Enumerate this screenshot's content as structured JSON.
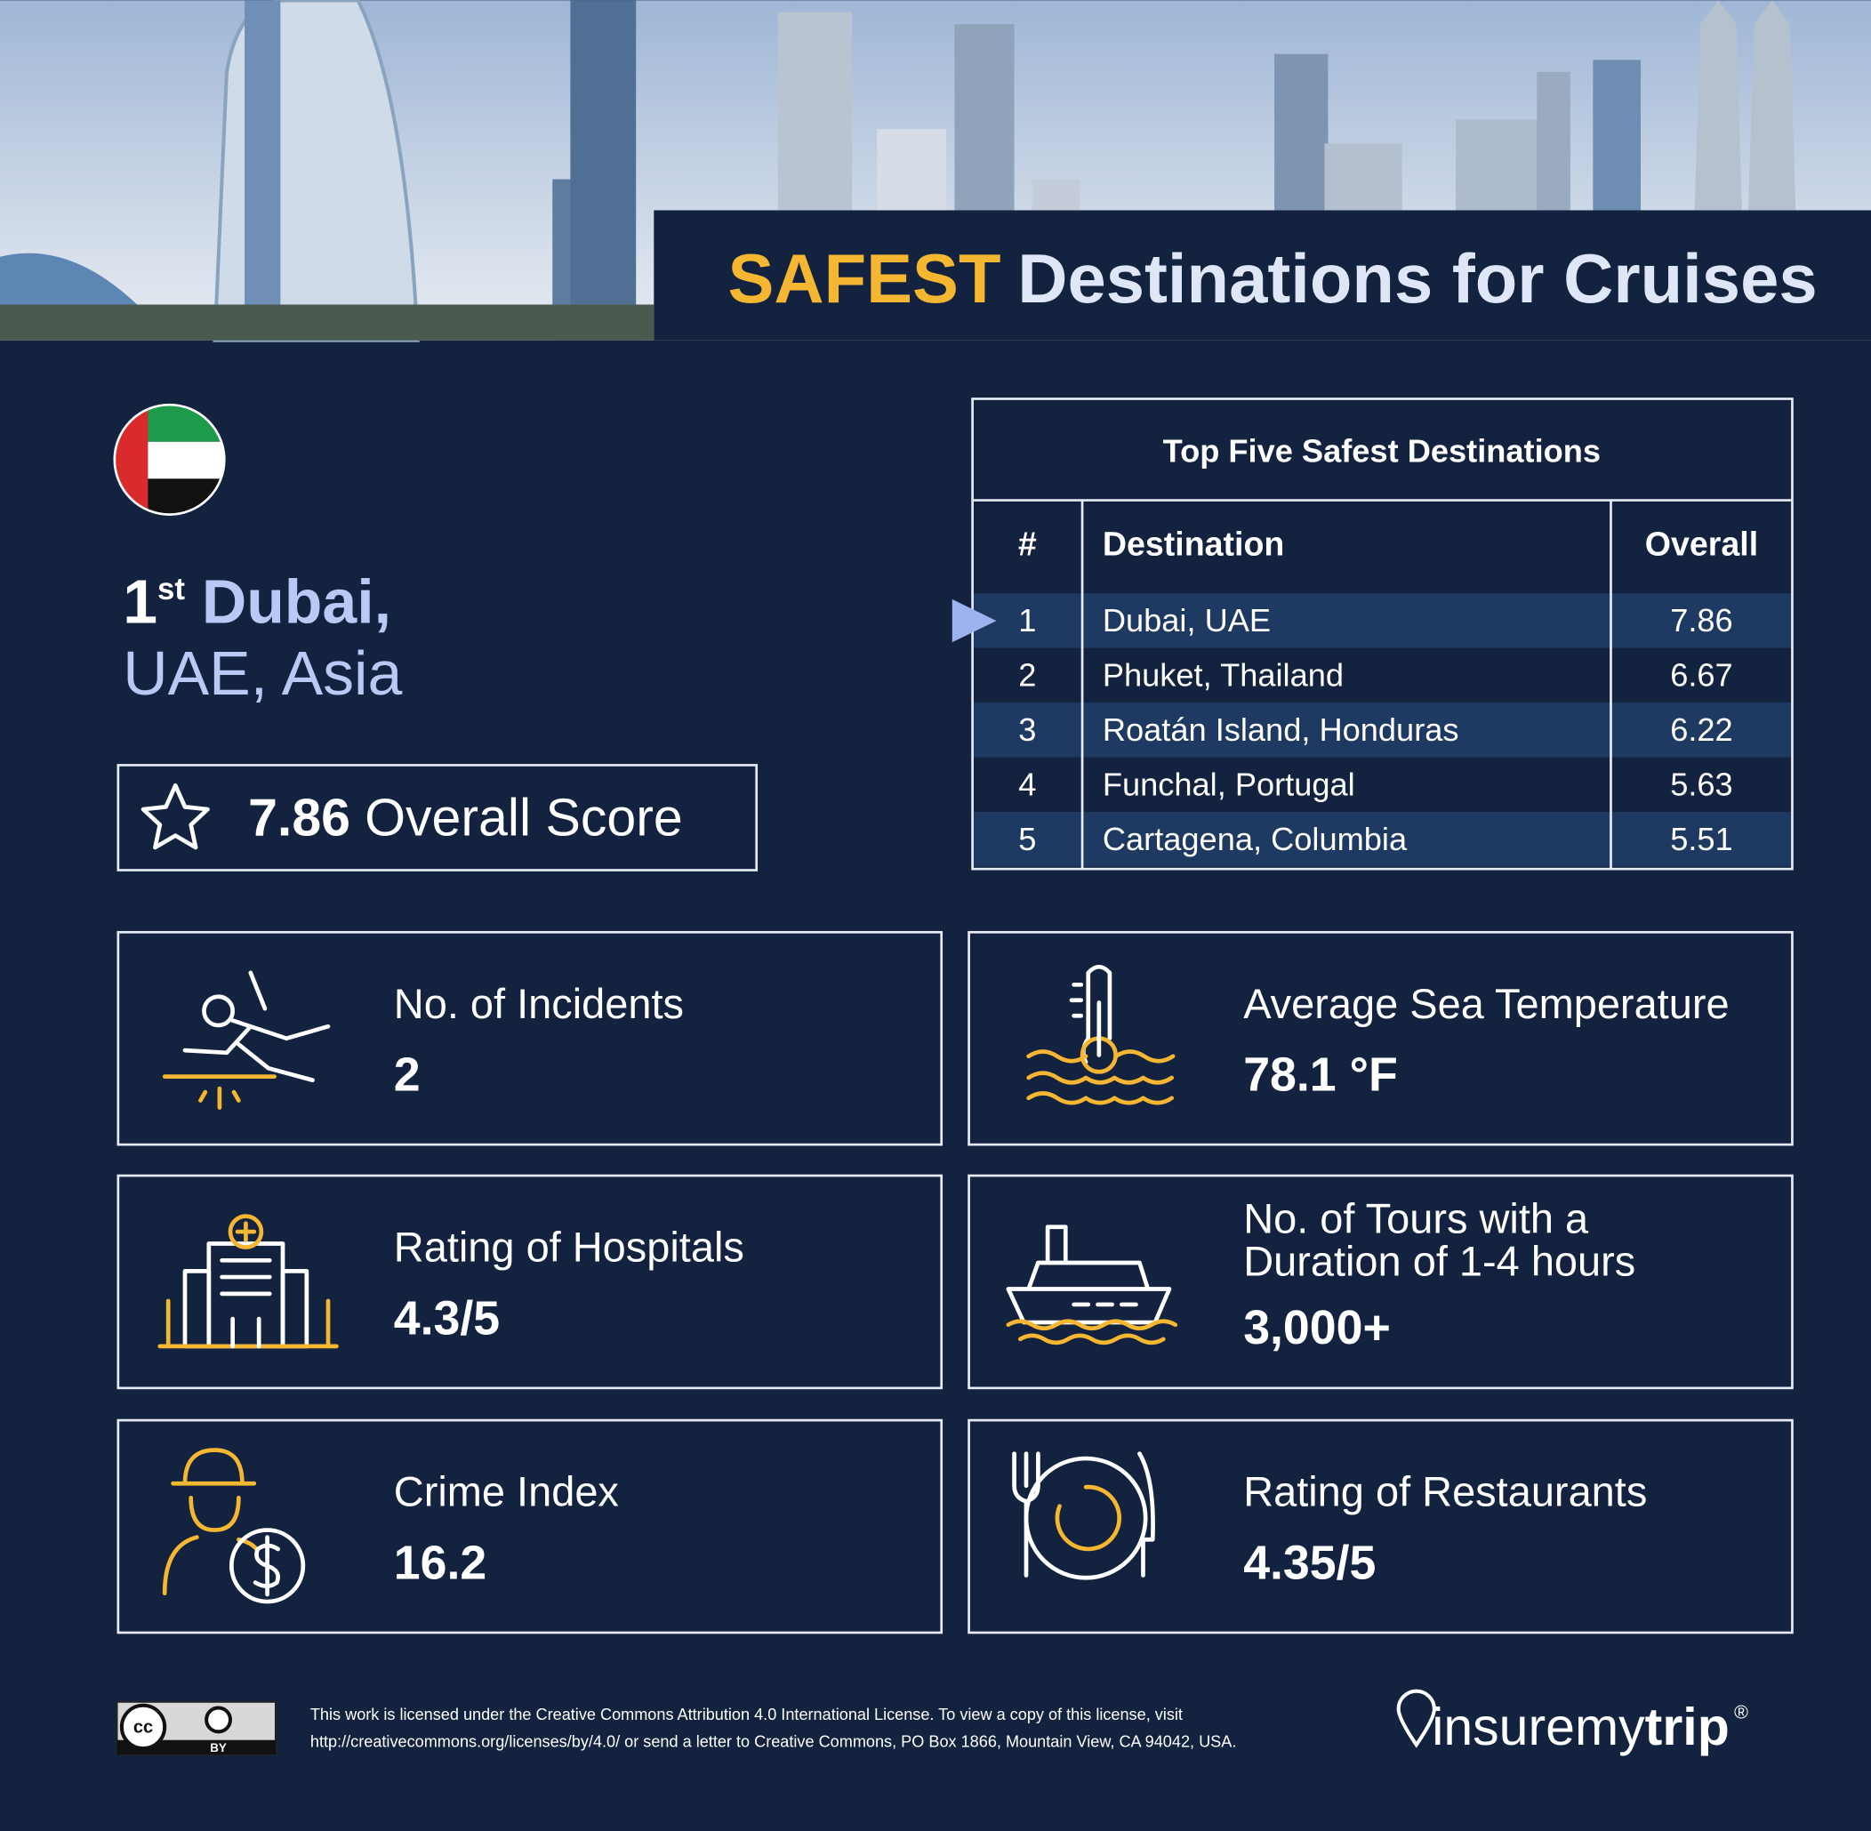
{
  "header": {
    "highlight": "SAFEST",
    "title": "Destinations for Cruises"
  },
  "destination": {
    "rank": "1",
    "rank_suffix": "st",
    "city": "Dubai,",
    "region": "UAE, Asia",
    "score": "7.86",
    "score_label": "Overall Score"
  },
  "table": {
    "title": "Top Five Safest Destinations",
    "headers": [
      "#",
      "Destination",
      "Overall"
    ],
    "rows": [
      [
        "1",
        "Dubai, UAE",
        "7.86"
      ],
      [
        "2",
        "Phuket, Thailand",
        "6.67"
      ],
      [
        "3",
        "Roatán Island, Honduras",
        "6.22"
      ],
      [
        "4",
        "Funchal, Portugal",
        "5.63"
      ],
      [
        "5",
        "Cartagena, Columbia",
        "5.51"
      ]
    ]
  },
  "stats": [
    {
      "label": [
        "No. of Incidents"
      ],
      "value": "2"
    },
    {
      "label": [
        "Average Sea Temperature"
      ],
      "value": "78.1 °F"
    },
    {
      "label": [
        "Rating of Hospitals"
      ],
      "value": "4.3/5"
    },
    {
      "label": [
        "No. of Tours with a",
        "Duration of 1-4 hours"
      ],
      "value": "3,000+"
    },
    {
      "label": [
        "Crime Index"
      ],
      "value": "16.2"
    },
    {
      "label": [
        "Rating of Restaurants"
      ],
      "value": "4.35/5"
    }
  ],
  "footer": {
    "license": [
      "This work is licensed under the Creative Commons Attribution 4.0 International License. To view a copy of this license, visit",
      "http://creativecommons.org/licenses/by/4.0/ or send a letter to Creative Commons, PO Box 1866, Mountain View, CA 94042, USA."
    ],
    "cc_badge": [
      "cc",
      "BY"
    ],
    "logo": {
      "light": "insuremy",
      "bold": "trip",
      "mark": "®"
    }
  }
}
